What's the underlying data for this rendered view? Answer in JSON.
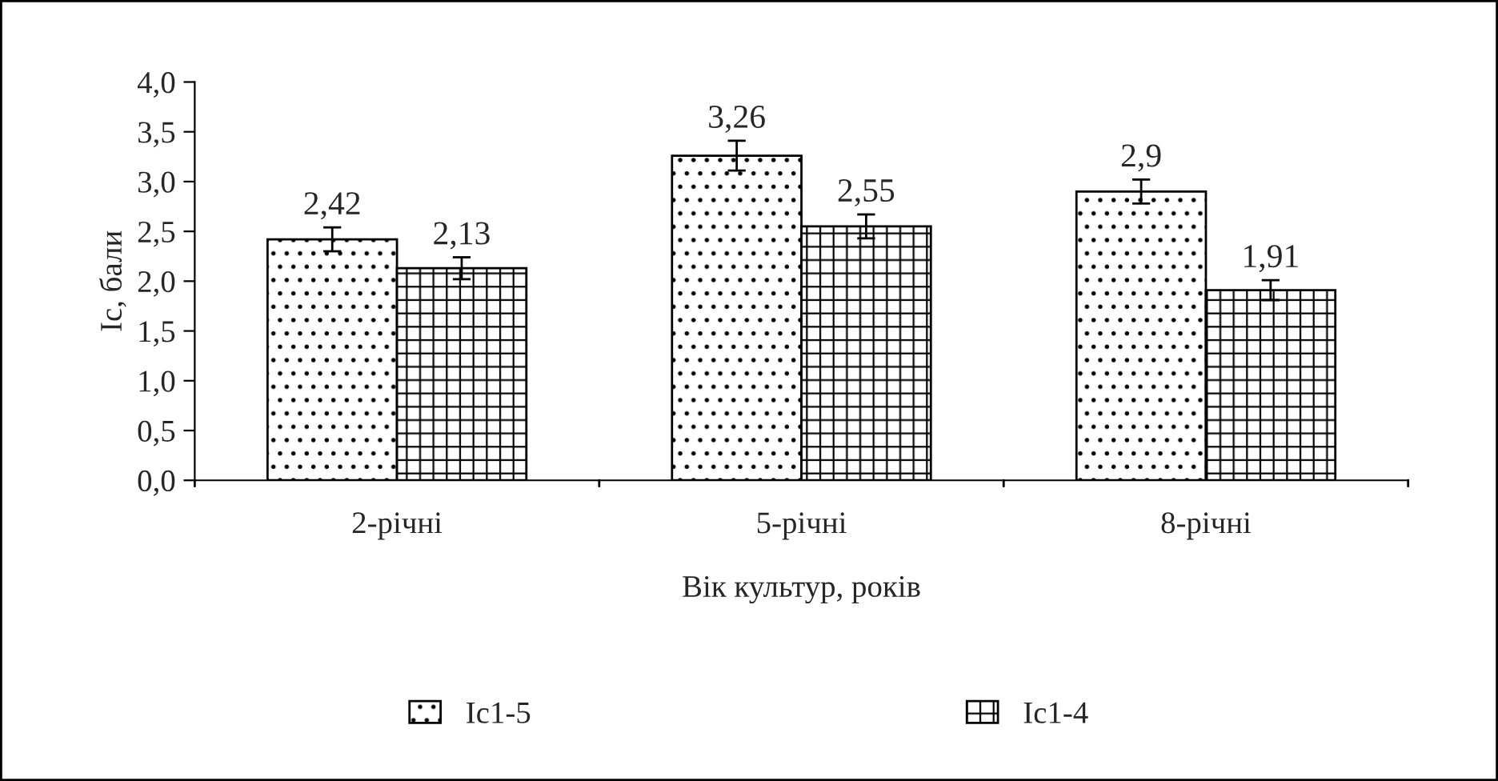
{
  "chart_data": {
    "type": "bar",
    "xlabel": "Вік культур, років",
    "ylabel": "Ic, бали",
    "categories": [
      "2-річні",
      "5-річні",
      "8-річні"
    ],
    "series": [
      {
        "name": "Ic1-5",
        "color": "#ffffff",
        "values": [
          2.42,
          3.26,
          2.9
        ],
        "errors": [
          0.12,
          0.15,
          0.12
        ],
        "value_labels": [
          "2,42",
          "3,26",
          "2,9"
        ]
      },
      {
        "name": "Ic1-4",
        "color": "#ffffff",
        "values": [
          2.13,
          2.55,
          1.91
        ],
        "errors": [
          0.11,
          0.12,
          0.1
        ],
        "value_labels": [
          "2,13",
          "2,55",
          "1,91"
        ]
      }
    ],
    "ylim": [
      0,
      4
    ],
    "yticks": [
      {
        "value": 0,
        "label": "0,0"
      },
      {
        "value": 0.5,
        "label": "0,5"
      },
      {
        "value": 1,
        "label": "1,0"
      },
      {
        "value": 1.5,
        "label": "1,5"
      },
      {
        "value": 2,
        "label": "2,0"
      },
      {
        "value": 2.5,
        "label": "2,5"
      },
      {
        "value": 3,
        "label": "3,0"
      },
      {
        "value": 3.5,
        "label": "3,5"
      },
      {
        "value": 4,
        "label": "4,0"
      }
    ],
    "grid": false,
    "legend": "bottom"
  }
}
